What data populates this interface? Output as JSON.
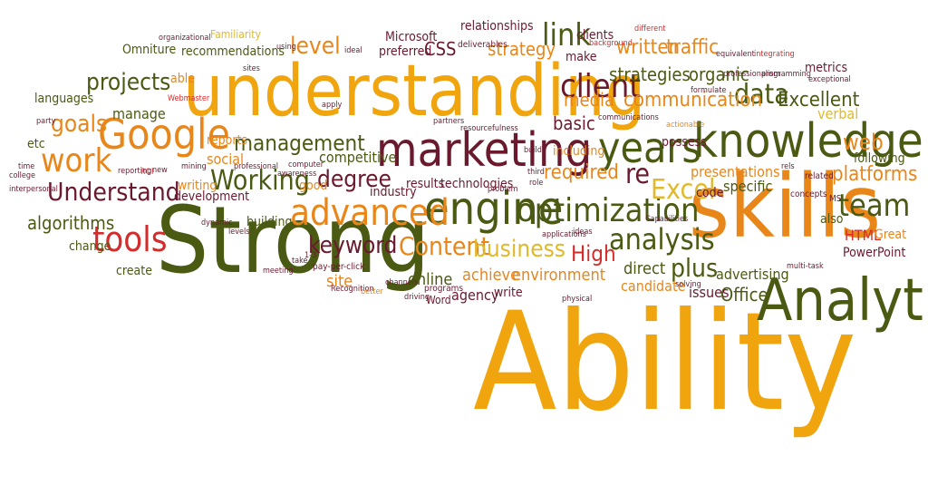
{
  "palette": {
    "olive": "#4b5a13",
    "maroon": "#6b1a2e",
    "orange": "#e8861a",
    "gold": "#f0a50e",
    "red": "#d42c2c",
    "brown": "#7a3e12",
    "yellow": "#e0b92c",
    "green": "#3f5c1b"
  },
  "words": [
    {
      "id": "ability",
      "text": "Ability"
    },
    {
      "id": "understanding",
      "text": "understanding"
    },
    {
      "id": "skills",
      "text": "skills"
    },
    {
      "id": "strong",
      "text": "Strong"
    },
    {
      "id": "analytics",
      "text": "Analytics"
    },
    {
      "id": "knowledge",
      "text": "knowledge"
    },
    {
      "id": "years",
      "text": "years"
    },
    {
      "id": "marketing",
      "text": "marketing"
    },
    {
      "id": "google",
      "text": "Google"
    },
    {
      "id": "engine",
      "text": "engine"
    },
    {
      "id": "advanced",
      "text": "advanced"
    },
    {
      "id": "optimization",
      "text": "optimization"
    },
    {
      "id": "client",
      "text": "client"
    },
    {
      "id": "tools",
      "text": "tools"
    },
    {
      "id": "analysis",
      "text": "analysis"
    },
    {
      "id": "team",
      "text": "team"
    },
    {
      "id": "data",
      "text": "data"
    },
    {
      "id": "understand",
      "text": "Understand"
    },
    {
      "id": "work",
      "text": "work"
    },
    {
      "id": "content",
      "text": "Content"
    },
    {
      "id": "keyword",
      "text": "keyword"
    },
    {
      "id": "excel",
      "text": "Excel"
    },
    {
      "id": "business",
      "text": "business"
    },
    {
      "id": "management",
      "text": "management"
    },
    {
      "id": "working",
      "text": "Working"
    },
    {
      "id": "degree",
      "text": "degree"
    },
    {
      "id": "projects",
      "text": "projects"
    },
    {
      "id": "goals",
      "text": "goals"
    },
    {
      "id": "level",
      "text": "level"
    },
    {
      "id": "link",
      "text": "link"
    },
    {
      "id": "communication",
      "text": "communication"
    },
    {
      "id": "excellent",
      "text": "Excellent"
    },
    {
      "id": "web",
      "text": "web"
    },
    {
      "id": "platforms",
      "text": "platforms"
    },
    {
      "id": "strategies",
      "text": "strategies"
    },
    {
      "id": "organic",
      "text": "organic"
    },
    {
      "id": "written",
      "text": "written"
    },
    {
      "id": "traffic",
      "text": "traffic"
    },
    {
      "id": "strategy",
      "text": "strategy"
    },
    {
      "id": "algorithms",
      "text": "algorithms"
    },
    {
      "id": "required",
      "text": "required"
    },
    {
      "id": "re",
      "text": "re"
    },
    {
      "id": "high",
      "text": "High"
    },
    {
      "id": "environment",
      "text": "environment"
    },
    {
      "id": "plus",
      "text": "plus"
    },
    {
      "id": "media",
      "text": "media"
    },
    {
      "id": "basic",
      "text": "basic"
    },
    {
      "id": "verbal",
      "text": "verbal"
    },
    {
      "id": "following",
      "text": "following"
    },
    {
      "id": "html",
      "text": "HTML"
    },
    {
      "id": "great",
      "text": "Great"
    },
    {
      "id": "powerpoint",
      "text": "PowerPoint"
    },
    {
      "id": "office",
      "text": "Office"
    },
    {
      "id": "advertising",
      "text": "advertising"
    },
    {
      "id": "issues",
      "text": "issues"
    },
    {
      "id": "direct",
      "text": "direct"
    },
    {
      "id": "candidate",
      "text": "candidate"
    },
    {
      "id": "achieve",
      "text": "achieve"
    },
    {
      "id": "online",
      "text": "online"
    },
    {
      "id": "site",
      "text": "site"
    },
    {
      "id": "agency",
      "text": "agency"
    },
    {
      "id": "word",
      "text": "Word"
    },
    {
      "id": "write",
      "text": "write"
    },
    {
      "id": "presentations",
      "text": "presentations"
    },
    {
      "id": "specific",
      "text": "specific"
    },
    {
      "id": "code",
      "text": "code"
    },
    {
      "id": "competitive",
      "text": "competitive"
    },
    {
      "id": "social",
      "text": "social"
    },
    {
      "id": "manage",
      "text": "manage"
    },
    {
      "id": "reports",
      "text": "reports"
    },
    {
      "id": "recommendations",
      "text": "recommendations"
    },
    {
      "id": "omniture",
      "text": "Omniture"
    },
    {
      "id": "familiarity",
      "text": "Familiarity"
    },
    {
      "id": "microsoft",
      "text": "Microsoft"
    },
    {
      "id": "css",
      "text": "CSS"
    },
    {
      "id": "relationships",
      "text": "relationships"
    },
    {
      "id": "clients",
      "text": "clients"
    },
    {
      "id": "make",
      "text": "make"
    },
    {
      "id": "preferred",
      "text": "preferred"
    },
    {
      "id": "deliverables",
      "text": "deliverables"
    },
    {
      "id": "metrics",
      "text": "metrics"
    },
    {
      "id": "languages",
      "text": "languages"
    },
    {
      "id": "etc",
      "text": "etc"
    },
    {
      "id": "change",
      "text": "change"
    },
    {
      "id": "create",
      "text": "create"
    },
    {
      "id": "building",
      "text": "building"
    },
    {
      "id": "good",
      "text": "good"
    },
    {
      "id": "results",
      "text": "results"
    },
    {
      "id": "technologies",
      "text": "technologies"
    },
    {
      "id": "industry",
      "text": "industry"
    },
    {
      "id": "writing",
      "text": "writing"
    },
    {
      "id": "development",
      "text": "development"
    },
    {
      "id": "including",
      "text": "including"
    },
    {
      "id": "possess",
      "text": "possess"
    },
    {
      "id": "also",
      "text": "also"
    },
    {
      "id": "able",
      "text": "able"
    },
    {
      "id": "payperclick",
      "text": "pay-per-click"
    },
    {
      "id": "programs",
      "text": "programs"
    },
    {
      "id": "related",
      "text": "related"
    },
    {
      "id": "concepts",
      "text": "concepts"
    },
    {
      "id": "ms",
      "text": "MS"
    },
    {
      "id": "organizational",
      "text": "organizational"
    },
    {
      "id": "using",
      "text": "using"
    },
    {
      "id": "ideal",
      "text": "ideal"
    },
    {
      "id": "webmaster",
      "text": "Webmaster"
    },
    {
      "id": "time",
      "text": "time"
    },
    {
      "id": "college",
      "text": "college"
    },
    {
      "id": "interpersonal",
      "text": "interpersonal"
    },
    {
      "id": "party",
      "text": "party"
    },
    {
      "id": "roi",
      "text": "ROI"
    },
    {
      "id": "meeting",
      "text": "meeting"
    },
    {
      "id": "take",
      "text": "take"
    },
    {
      "id": "dynamic",
      "text": "dynamic"
    },
    {
      "id": "levels",
      "text": "levels"
    },
    {
      "id": "computer",
      "text": "computer"
    },
    {
      "id": "awareness",
      "text": "awareness"
    },
    {
      "id": "recognition",
      "text": "Recognition"
    },
    {
      "id": "professional",
      "text": "professional"
    },
    {
      "id": "mining",
      "text": "mining"
    },
    {
      "id": "reporting",
      "text": "reporting"
    },
    {
      "id": "new",
      "text": "new"
    },
    {
      "id": "apply",
      "text": "apply"
    },
    {
      "id": "sites",
      "text": "sites"
    },
    {
      "id": "partners",
      "text": "partners"
    },
    {
      "id": "resourcefulness",
      "text": "resourcefulness"
    },
    {
      "id": "problem",
      "text": "problem"
    },
    {
      "id": "third",
      "text": "third"
    },
    {
      "id": "role",
      "text": "role"
    },
    {
      "id": "build",
      "text": "build"
    },
    {
      "id": "channels",
      "text": "channels"
    },
    {
      "id": "better",
      "text": "better"
    },
    {
      "id": "driving",
      "text": "driving"
    },
    {
      "id": "applications",
      "text": "applications"
    },
    {
      "id": "ideas",
      "text": "ideas"
    },
    {
      "id": "solving",
      "text": "solving"
    },
    {
      "id": "physical",
      "text": "physical"
    },
    {
      "id": "capabilities",
      "text": "Capabilities"
    },
    {
      "id": "multitask",
      "text": "multi-task"
    },
    {
      "id": "rels",
      "text": "rels"
    },
    {
      "id": "actionable",
      "text": "actionable"
    },
    {
      "id": "communications",
      "text": "communications"
    },
    {
      "id": "formulate",
      "text": "formulate"
    },
    {
      "id": "background",
      "text": "background"
    },
    {
      "id": "different",
      "text": "different"
    },
    {
      "id": "equivalent",
      "text": "equivalent"
    },
    {
      "id": "integrating",
      "text": "integrating"
    },
    {
      "id": "professionalism",
      "text": "professionalism"
    },
    {
      "id": "programming",
      "text": "programming"
    },
    {
      "id": "exceptional",
      "text": "exceptional"
    },
    {
      "id": "onetwothree",
      "text": "1-3"
    }
  ]
}
